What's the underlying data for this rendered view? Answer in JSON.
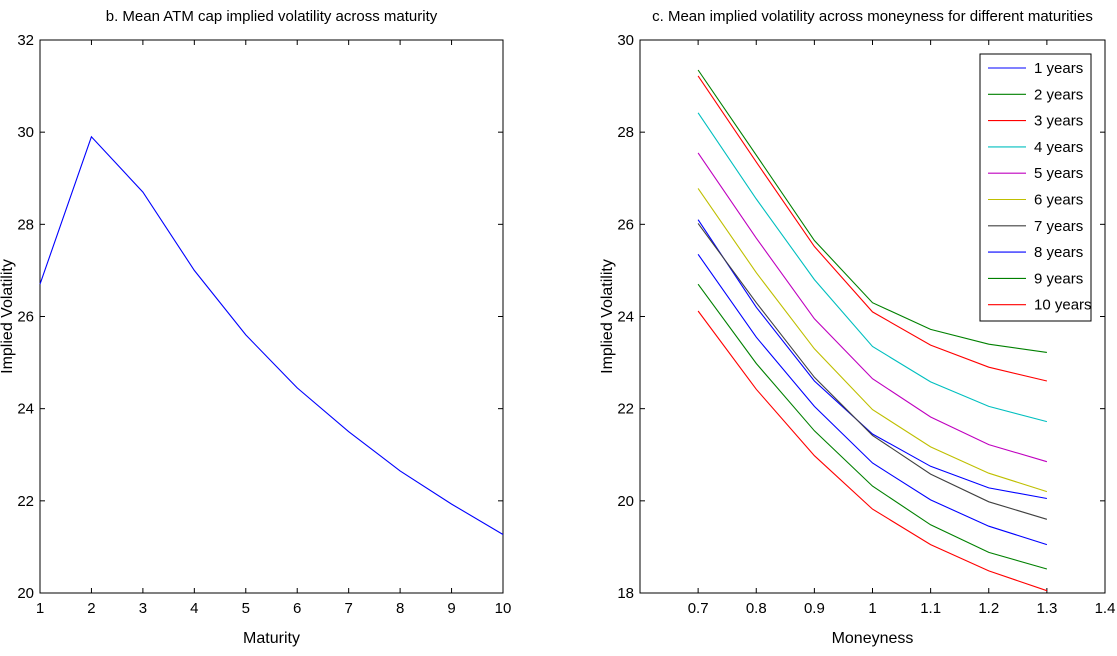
{
  "chart_data": [
    {
      "type": "line",
      "title": "b. Mean ATM cap implied volatility across maturity",
      "xlabel": "Maturity",
      "ylabel": "Implied Volatility",
      "xlim": [
        1,
        10
      ],
      "ylim": [
        20,
        32
      ],
      "xticks": [
        "1",
        "2",
        "3",
        "4",
        "5",
        "6",
        "7",
        "8",
        "9",
        "10"
      ],
      "yticks": [
        "20",
        "22",
        "24",
        "26",
        "28",
        "30",
        "32"
      ],
      "grid": false,
      "series": [
        {
          "color": "#0000ff",
          "x": [
            1,
            2,
            3,
            4,
            5,
            6,
            7,
            8,
            9,
            10
          ],
          "y": [
            26.7,
            29.9,
            28.7,
            27.0,
            25.6,
            24.45,
            23.5,
            22.65,
            21.93,
            21.27
          ]
        }
      ]
    },
    {
      "type": "line",
      "title": "c. Mean implied volatility across moneyness for different maturities",
      "xlabel": "Moneyness",
      "ylabel": "Implied Volatility",
      "xlim": [
        0.6,
        1.4
      ],
      "ylim": [
        18,
        30
      ],
      "xticks": [
        "0.7",
        "0.8",
        "0.9",
        "1",
        "1.1",
        "1.2",
        "1.3",
        "1.4"
      ],
      "yticks": [
        "18",
        "20",
        "22",
        "24",
        "26",
        "28",
        "30"
      ],
      "grid": false,
      "legend_position": "top-right",
      "x": [
        0.7,
        0.8,
        0.9,
        1.0,
        1.1,
        1.2,
        1.3
      ],
      "series": [
        {
          "name": "1 years",
          "color": "#0000ff",
          "y": [
            26.1,
            24.2,
            22.6,
            21.45,
            20.75,
            20.28,
            20.05
          ]
        },
        {
          "name": "2 years",
          "color": "#008000",
          "y": [
            29.35,
            27.5,
            25.65,
            24.3,
            23.72,
            23.4,
            23.22
          ]
        },
        {
          "name": "3 years",
          "color": "#ff0000",
          "y": [
            29.22,
            27.35,
            25.52,
            24.1,
            23.38,
            22.9,
            22.6
          ]
        },
        {
          "name": "4 years",
          "color": "#00bfbf",
          "y": [
            28.42,
            26.55,
            24.8,
            23.35,
            22.58,
            22.05,
            21.72
          ]
        },
        {
          "name": "5 years",
          "color": "#bf00bf",
          "y": [
            27.55,
            25.7,
            23.95,
            22.65,
            21.82,
            21.22,
            20.85
          ]
        },
        {
          "name": "6 years",
          "color": "#bfbf00",
          "y": [
            26.78,
            24.95,
            23.3,
            21.98,
            21.17,
            20.6,
            20.2
          ]
        },
        {
          "name": "7 years",
          "color": "#404040",
          "y": [
            26.02,
            24.3,
            22.68,
            21.42,
            20.58,
            19.98,
            19.6
          ]
        },
        {
          "name": "8 years",
          "color": "#0000ff",
          "y": [
            25.35,
            23.55,
            22.05,
            20.82,
            20.02,
            19.45,
            19.05
          ]
        },
        {
          "name": "9 years",
          "color": "#008000",
          "y": [
            24.7,
            22.98,
            21.52,
            20.32,
            19.48,
            18.88,
            18.52
          ]
        },
        {
          "name": "10 years",
          "color": "#ff0000",
          "y": [
            24.12,
            22.42,
            20.98,
            19.82,
            19.05,
            18.48,
            18.05
          ]
        }
      ]
    }
  ]
}
